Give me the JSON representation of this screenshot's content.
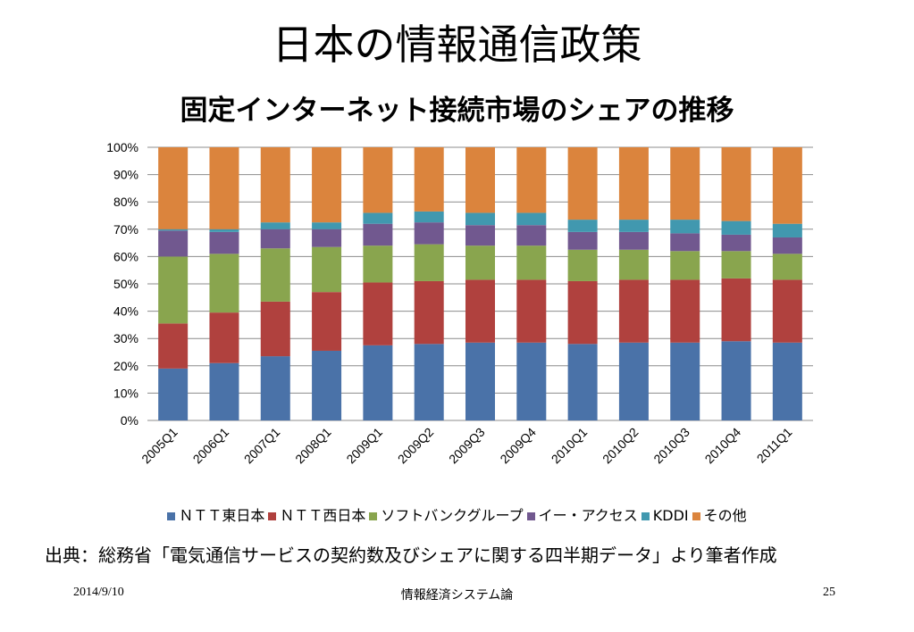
{
  "slide": {
    "title": "日本の情報通信政策",
    "source": "出典：総務省「電気通信サービスの契約数及びシェアに関する四半期データ」より筆者作成",
    "date": "2014/9/10",
    "course": "情報経済システム論",
    "page_number": "25"
  },
  "chart_data": {
    "type": "bar",
    "stacked": true,
    "title": "固定インターネット接続市場のシェアの推移",
    "xlabel": "",
    "ylabel": "",
    "ylim": [
      0,
      100
    ],
    "y_ticks": [
      "0%",
      "10%",
      "20%",
      "30%",
      "40%",
      "50%",
      "60%",
      "70%",
      "80%",
      "90%",
      "100%"
    ],
    "grid": true,
    "legend_position": "bottom",
    "categories": [
      "2005Q1",
      "2006Q1",
      "2007Q1",
      "2008Q1",
      "2009Q1",
      "2009Q2",
      "2009Q3",
      "2009Q4",
      "2010Q1",
      "2010Q2",
      "2010Q3",
      "2010Q4",
      "2011Q1"
    ],
    "series": [
      {
        "name": "ＮＴＴ東日本",
        "color": "#4a72a8",
        "values": [
          19,
          21,
          23.5,
          25.5,
          27.5,
          28,
          28.5,
          28.5,
          28,
          28.5,
          28.5,
          29,
          28.5
        ]
      },
      {
        "name": "ＮＴＴ西日本",
        "color": "#b0413e",
        "values": [
          16.5,
          18.5,
          20,
          21.5,
          23,
          23,
          23,
          23,
          23,
          23,
          23,
          23,
          23
        ]
      },
      {
        "name": "ソフトバンクグループ",
        "color": "#89a54e",
        "values": [
          24.5,
          21.5,
          19.5,
          16.5,
          13.5,
          13.5,
          12.5,
          12.5,
          11.5,
          11,
          10.5,
          10,
          9.5
        ]
      },
      {
        "name": "イー・アクセス",
        "color": "#71588f",
        "values": [
          9.5,
          8,
          7,
          6.5,
          8,
          8,
          7.5,
          7.5,
          6.5,
          6.5,
          6.5,
          6,
          6
        ]
      },
      {
        "name": "KDDI",
        "color": "#4198af",
        "values": [
          0.5,
          1,
          2.5,
          2.5,
          4,
          4,
          4.5,
          4.5,
          4.5,
          4.5,
          5,
          5,
          5
        ]
      },
      {
        "name": "その他",
        "color": "#db843d",
        "values": [
          30,
          30,
          27.5,
          27.5,
          24,
          23.5,
          24,
          24,
          26.5,
          26.5,
          26.5,
          27,
          28
        ]
      }
    ]
  }
}
